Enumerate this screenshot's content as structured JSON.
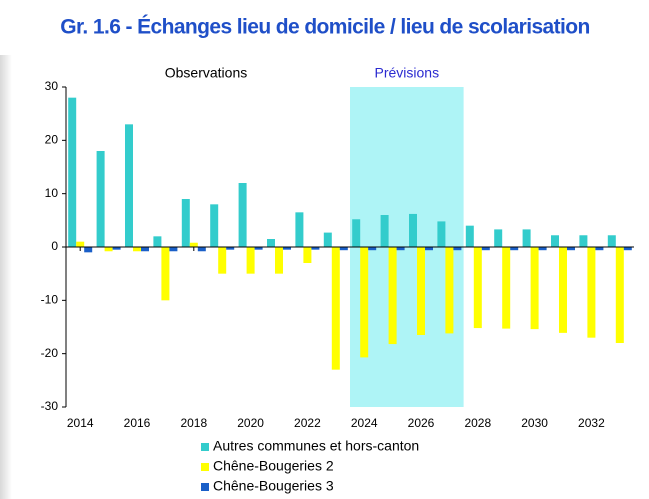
{
  "chart_data": {
    "type": "bar",
    "title": "Gr. 1.6 - Échanges lieu de domicile / lieu de scolarisation",
    "annotations": [
      {
        "text": "Observations",
        "color": "#000000"
      },
      {
        "text": "Prévisions",
        "color": "#2a2ad0"
      }
    ],
    "shade": {
      "from": 2023.5,
      "to": 2027.5,
      "color": "#aef4f6"
    },
    "x": [
      2014,
      2015,
      2016,
      2017,
      2018,
      2019,
      2020,
      2021,
      2022,
      2023,
      2024,
      2025,
      2026,
      2027,
      2028,
      2029,
      2030,
      2031,
      2032,
      2033
    ],
    "xlim": [
      2013.5,
      2033.5
    ],
    "xticks": [
      2014,
      2016,
      2018,
      2020,
      2022,
      2024,
      2026,
      2028,
      2030,
      2032
    ],
    "ylim": [
      -30,
      30
    ],
    "yticks": [
      -30,
      -20,
      -10,
      0,
      10,
      20,
      30
    ],
    "series": [
      {
        "name": "Autres communes et hors-canton",
        "color": "#33cccc",
        "values": [
          28,
          18,
          23,
          2,
          9,
          8,
          12,
          1.5,
          6.5,
          2.7,
          5.2,
          6,
          6.2,
          4.8,
          4,
          3.3,
          3.3,
          2.2,
          2.2,
          2.2
        ]
      },
      {
        "name": "Chêne-Bougeries 2",
        "color": "#ffff00",
        "values": [
          1,
          -0.8,
          -0.8,
          -10,
          0.8,
          -5,
          -5,
          -5,
          -3,
          -23,
          -20.7,
          -18.2,
          -16.5,
          -16.2,
          -15.2,
          -15.3,
          -15.4,
          -16.1,
          -17,
          -18
        ]
      },
      {
        "name": "Chêne-Bougeries 3",
        "color": "#1a5fc8",
        "values": [
          -1,
          -0.5,
          -0.8,
          -0.8,
          -0.8,
          -0.5,
          -0.5,
          -0.5,
          -0.5,
          -0.6,
          -0.6,
          -0.6,
          -0.6,
          -0.6,
          -0.6,
          -0.6,
          -0.6,
          -0.6,
          -0.6,
          -0.6
        ]
      }
    ]
  }
}
